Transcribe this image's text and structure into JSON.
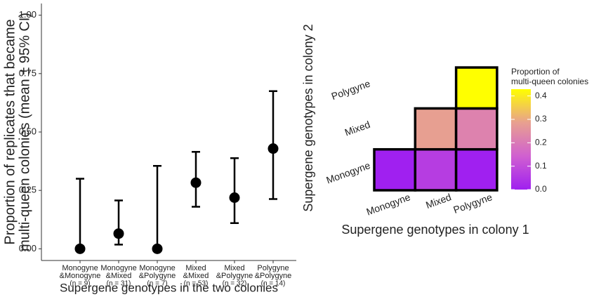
{
  "chart_data": [
    {
      "type": "errorbar",
      "ylabel": [
        "Proportion of replicates that became",
        "multi-queen colonies (mean ± 95% CI)"
      ],
      "xlabel": "Supergene genotypes in the two colonies",
      "categories": [
        [
          "Monogyne",
          "&Monogyne"
        ],
        [
          "Monogyne",
          "&Mixed"
        ],
        [
          "Monogyne",
          "&Polygyne"
        ],
        [
          "Mixed",
          "&Mixed"
        ],
        [
          "Mixed",
          "&Polygyne"
        ],
        [
          "Polygyne",
          "&Polygyne"
        ]
      ],
      "sample_sizes": [
        "(n = 9)",
        "(n = 31)",
        "(n = 7)",
        "(n = 53)",
        "(n = 32)",
        "(n = 14)"
      ],
      "values": [
        0,
        0.065,
        0,
        0.283,
        0.219,
        0.429
      ],
      "lower": [
        0,
        0.018,
        0,
        0.18,
        0.11,
        0.213
      ],
      "upper": [
        0.3,
        0.207,
        0.355,
        0.415,
        0.388,
        0.675
      ],
      "color": "#000000",
      "ylim": [
        -0.05,
        1.05
      ],
      "yticks": [
        {
          "value": 0,
          "label": "0.00"
        },
        {
          "value": 0.25,
          "label": "0.25"
        },
        {
          "value": 0.5,
          "label": "0.50"
        },
        {
          "value": 0.75,
          "label": "0.75"
        },
        {
          "value": 1,
          "label": "1.00"
        }
      ]
    },
    {
      "type": "heatmap",
      "xlabel": "Supergene genotypes in colony 1",
      "ylabel": "Supergene genotypes in colony 2",
      "x_categories": [
        "Monogyne",
        "Mixed",
        "Polygyne"
      ],
      "y_categories": [
        "Monogyne",
        "Mixed",
        "Polygyne"
      ],
      "values": [
        [
          0,
          0.065,
          0
        ],
        [
          null,
          0.283,
          0.219
        ],
        [
          null,
          null,
          0.429
        ]
      ],
      "legend_title": [
        "Proportion of",
        "multi-queen colonies"
      ],
      "colormap": [
        "#a020f0",
        "#d060d0",
        "#e8a090",
        "#ffff00"
      ],
      "clim": [
        0,
        0.429
      ],
      "cticks": [
        {
          "value": 0,
          "label": "0.0"
        },
        {
          "value": 0.1,
          "label": "0.1"
        },
        {
          "value": 0.2,
          "label": "0.2"
        },
        {
          "value": 0.3,
          "label": "0.3"
        },
        {
          "value": 0.4,
          "label": "0.4"
        }
      ]
    }
  ]
}
